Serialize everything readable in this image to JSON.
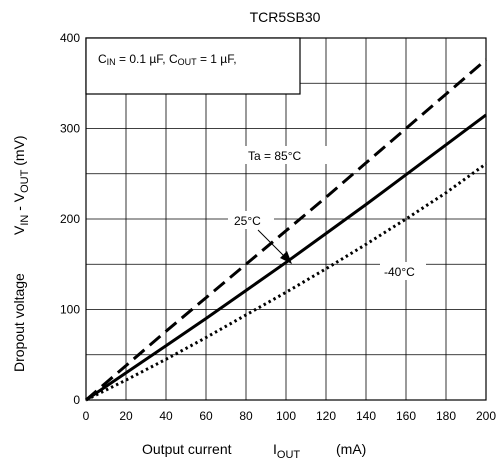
{
  "chart_data": {
    "type": "line",
    "title": "TCR5SB30",
    "xlabel": {
      "main": "Output current",
      "symbol": "I",
      "sub": "OUT",
      "unit": "(mA)"
    },
    "ylabel": {
      "main": "Dropout voltage",
      "v1": "V",
      "v1sub": "IN",
      "dash": " - V",
      "v2sub": "OUT",
      "unit": " (mV)"
    },
    "xlim": [
      0,
      200
    ],
    "ylim": [
      0,
      400
    ],
    "x_ticks": [
      "0",
      "20",
      "40",
      "60",
      "80",
      "100",
      "120",
      "140",
      "160",
      "180",
      "200"
    ],
    "y_ticks": [
      "0",
      "100",
      "200",
      "300",
      "400"
    ],
    "grid": true,
    "condition": {
      "c": "C",
      "cin_sub": "IN",
      "cin_val": " = 0.1 µF, C",
      "cout_sub": "OUT",
      "cout_val": " = 1 µF,"
    },
    "series": [
      {
        "name": "Ta = 85°C",
        "style": "dashed",
        "x": [
          0,
          20,
          40,
          60,
          80,
          100,
          120,
          140,
          160,
          180,
          200
        ],
        "y": [
          0,
          38,
          76,
          113,
          150,
          187,
          224,
          262,
          300,
          338,
          376
        ]
      },
      {
        "name": "25°C",
        "style": "solid",
        "x": [
          0,
          20,
          40,
          60,
          80,
          100,
          120,
          140,
          160,
          180,
          200
        ],
        "y": [
          0,
          30,
          60,
          90,
          121,
          152,
          184,
          216,
          249,
          282,
          315
        ]
      },
      {
        "name": "-40°C",
        "style": "dotted",
        "x": [
          0,
          20,
          40,
          60,
          80,
          100,
          120,
          140,
          160,
          180,
          200
        ],
        "y": [
          0,
          22,
          45,
          69,
          94,
          119,
          145,
          172,
          200,
          229,
          261
        ]
      }
    ]
  }
}
